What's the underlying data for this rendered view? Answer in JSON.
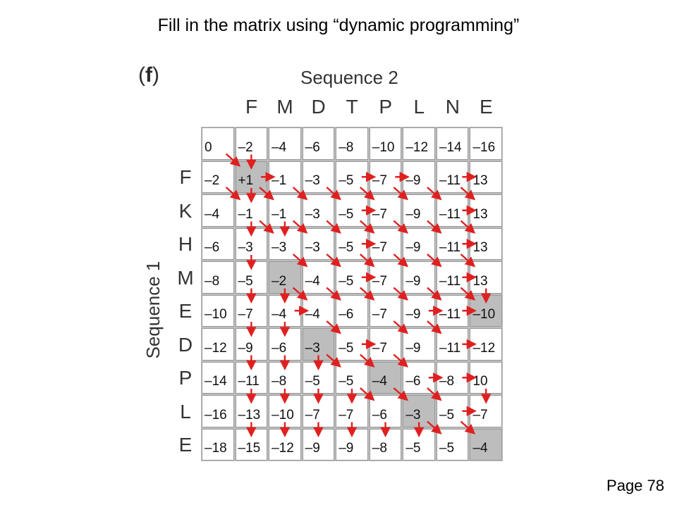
{
  "slide": {
    "title": "Fill in the matrix using “dynamic programming”",
    "page": "Page 78"
  },
  "figure": {
    "panel_label_open": "(",
    "panel_label_letter": "f",
    "panel_label_close": ")",
    "sequence2_label": "Sequence 2",
    "sequence1_label": "Sequence 1",
    "sequence2": [
      "F",
      "M",
      "D",
      "T",
      "P",
      "L",
      "N",
      "E"
    ],
    "sequence1": [
      "F",
      "K",
      "H",
      "M",
      "E",
      "D",
      "P",
      "L",
      "E"
    ],
    "matrix": [
      [
        "0",
        "–2",
        "–4",
        "–6",
        "–8",
        "–10",
        "–12",
        "–14",
        "–16"
      ],
      [
        "–2",
        "+1",
        "–1",
        "–3",
        "–5",
        "–7",
        "–9",
        "–11",
        "13"
      ],
      [
        "–4",
        "–1",
        "–1",
        "–3",
        "–5",
        "–7",
        "–9",
        "–11",
        "13"
      ],
      [
        "–6",
        "–3",
        "–3",
        "–3",
        "–5",
        "–7",
        "–9",
        "–11",
        "13"
      ],
      [
        "–8",
        "–5",
        "–2",
        "–4",
        "–5",
        "–7",
        "–9",
        "–11",
        "13"
      ],
      [
        "–10",
        "–7",
        "–4",
        "–4",
        "–6",
        "–7",
        "–9",
        "–11",
        "–10"
      ],
      [
        "–12",
        "–9",
        "–6",
        "–3",
        "–5",
        "–7",
        "–9",
        "–11",
        "–12"
      ],
      [
        "–14",
        "–11",
        "–8",
        "–5",
        "–5",
        "–4",
        "–6",
        "–8",
        "10"
      ],
      [
        "–16",
        "–13",
        "–10",
        "–7",
        "–7",
        "–6",
        "–3",
        "–5",
        "–7"
      ],
      [
        "–18",
        "–15",
        "–12",
        "–9",
        "–9",
        "–8",
        "–5",
        "–5",
        "–4"
      ]
    ],
    "traceback_path": [
      [
        1,
        1
      ],
      [
        2,
        1
      ],
      [
        4,
        2
      ],
      [
        6,
        3
      ],
      [
        7,
        5
      ],
      [
        8,
        6
      ],
      [
        9,
        8
      ],
      [
        5,
        8
      ]
    ],
    "arrow_color": "#e02020",
    "shade_color": "#bdbdbd",
    "arrows": {
      "right": [
        [
          1,
          1
        ],
        [
          1,
          4
        ],
        [
          1,
          5
        ],
        [
          1,
          7
        ],
        [
          2,
          4
        ],
        [
          2,
          7
        ],
        [
          3,
          4
        ],
        [
          3,
          7
        ],
        [
          4,
          4
        ],
        [
          4,
          7
        ],
        [
          5,
          2
        ],
        [
          5,
          6
        ],
        [
          5,
          7
        ],
        [
          6,
          4
        ],
        [
          6,
          7
        ],
        [
          7,
          6
        ],
        [
          7,
          7
        ],
        [
          8,
          7
        ]
      ],
      "down": [
        [
          0,
          1
        ],
        [
          1,
          1
        ],
        [
          2,
          1
        ],
        [
          3,
          1
        ],
        [
          4,
          1
        ],
        [
          5,
          1
        ],
        [
          6,
          1
        ],
        [
          7,
          1
        ],
        [
          8,
          1
        ],
        [
          4,
          2
        ],
        [
          5,
          2
        ],
        [
          6,
          2
        ],
        [
          7,
          2
        ],
        [
          8,
          2
        ],
        [
          6,
          3
        ],
        [
          7,
          3
        ],
        [
          8,
          3
        ],
        [
          7,
          4
        ],
        [
          8,
          4
        ],
        [
          8,
          5
        ],
        [
          8,
          6
        ],
        [
          2,
          2
        ],
        [
          4,
          8
        ],
        [
          7,
          8
        ]
      ],
      "diag": [
        [
          0,
          0
        ],
        [
          1,
          0
        ],
        [
          1,
          1
        ],
        [
          1,
          2
        ],
        [
          1,
          3
        ],
        [
          1,
          4
        ],
        [
          1,
          5
        ],
        [
          1,
          6
        ],
        [
          1,
          7
        ],
        [
          2,
          1
        ],
        [
          2,
          2
        ],
        [
          2,
          3
        ],
        [
          2,
          4
        ],
        [
          2,
          5
        ],
        [
          2,
          6
        ],
        [
          2,
          7
        ],
        [
          3,
          2
        ],
        [
          3,
          3
        ],
        [
          3,
          4
        ],
        [
          3,
          5
        ],
        [
          3,
          6
        ],
        [
          3,
          7
        ],
        [
          4,
          2
        ],
        [
          4,
          3
        ],
        [
          4,
          4
        ],
        [
          4,
          5
        ],
        [
          4,
          6
        ],
        [
          4,
          7
        ],
        [
          5,
          3
        ],
        [
          5,
          5
        ],
        [
          5,
          6
        ],
        [
          6,
          3
        ],
        [
          6,
          4
        ],
        [
          6,
          5
        ],
        [
          7,
          4
        ],
        [
          7,
          5
        ],
        [
          7,
          6
        ],
        [
          8,
          6
        ],
        [
          8,
          7
        ]
      ]
    }
  }
}
